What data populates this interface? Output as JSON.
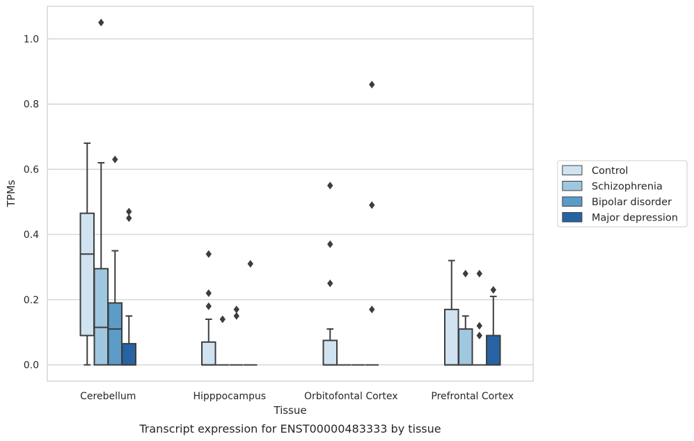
{
  "chart_data": {
    "type": "boxplot",
    "caption": "Transcript expression for ENST00000483333 by tissue",
    "xlabel": "Tissue",
    "ylabel": "TPMs",
    "ylim": [
      -0.05,
      1.1
    ],
    "yticks": [
      "0.0",
      "0.2",
      "0.4",
      "0.6",
      "0.8",
      "1.0"
    ],
    "grid": "horizontal",
    "legend_position": "right",
    "categories": [
      "Cerebellum",
      "Hipppocampus",
      "Orbitofontal Cortex",
      "Prefrontal Cortex"
    ],
    "series": [
      {
        "name": "Control",
        "color": "#d1e2f0"
      },
      {
        "name": "Schizophrenia",
        "color": "#9fc7df"
      },
      {
        "name": "Bipolar disorder",
        "color": "#5b9bc8"
      },
      {
        "name": "Major depression",
        "color": "#2763a4"
      }
    ],
    "boxes": [
      [
        {
          "whislo": 0.0,
          "q1": 0.09,
          "med": 0.34,
          "q3": 0.465,
          "whishi": 0.68,
          "fliers": []
        },
        {
          "whislo": 0.0,
          "q1": 0.0,
          "med": 0.115,
          "q3": 0.295,
          "whishi": 0.62,
          "fliers": [
            1.05
          ]
        },
        {
          "whislo": 0.0,
          "q1": 0.0,
          "med": 0.11,
          "q3": 0.19,
          "whishi": 0.35,
          "fliers": [
            0.63
          ]
        },
        {
          "whislo": 0.0,
          "q1": 0.0,
          "med": 0.0,
          "q3": 0.065,
          "whishi": 0.15,
          "fliers": [
            0.45,
            0.47
          ]
        }
      ],
      [
        {
          "whislo": 0.0,
          "q1": 0.0,
          "med": 0.0,
          "q3": 0.07,
          "whishi": 0.14,
          "fliers": [
            0.18,
            0.22,
            0.34
          ]
        },
        {
          "whislo": 0.0,
          "q1": 0.0,
          "med": 0.0,
          "q3": 0.0,
          "whishi": 0.0,
          "fliers": [
            0.14
          ]
        },
        {
          "whislo": 0.0,
          "q1": 0.0,
          "med": 0.0,
          "q3": 0.0,
          "whishi": 0.0,
          "fliers": [
            0.15,
            0.17
          ]
        },
        {
          "whislo": 0.0,
          "q1": 0.0,
          "med": 0.0,
          "q3": 0.0,
          "whishi": 0.0,
          "fliers": [
            0.31
          ]
        }
      ],
      [
        {
          "whislo": 0.0,
          "q1": 0.0,
          "med": 0.0,
          "q3": 0.075,
          "whishi": 0.11,
          "fliers": [
            0.25,
            0.37,
            0.55
          ]
        },
        {
          "whislo": 0.0,
          "q1": 0.0,
          "med": 0.0,
          "q3": 0.0,
          "whishi": 0.0,
          "fliers": []
        },
        {
          "whislo": 0.0,
          "q1": 0.0,
          "med": 0.0,
          "q3": 0.0,
          "whishi": 0.0,
          "fliers": []
        },
        {
          "whislo": 0.0,
          "q1": 0.0,
          "med": 0.0,
          "q3": 0.0,
          "whishi": 0.0,
          "fliers": [
            0.17,
            0.49,
            0.86
          ]
        }
      ],
      [
        {
          "whislo": 0.0,
          "q1": 0.0,
          "med": 0.0,
          "q3": 0.17,
          "whishi": 0.32,
          "fliers": []
        },
        {
          "whislo": 0.0,
          "q1": 0.0,
          "med": 0.0,
          "q3": 0.11,
          "whishi": 0.15,
          "fliers": [
            0.28
          ]
        },
        {
          "whislo": 0.0,
          "q1": 0.0,
          "med": 0.0,
          "q3": 0.0,
          "whishi": 0.0,
          "fliers": [
            0.09,
            0.12,
            0.28
          ]
        },
        {
          "whislo": 0.0,
          "q1": 0.0,
          "med": 0.0,
          "q3": 0.09,
          "whishi": 0.21,
          "fliers": [
            0.23
          ]
        }
      ]
    ]
  }
}
